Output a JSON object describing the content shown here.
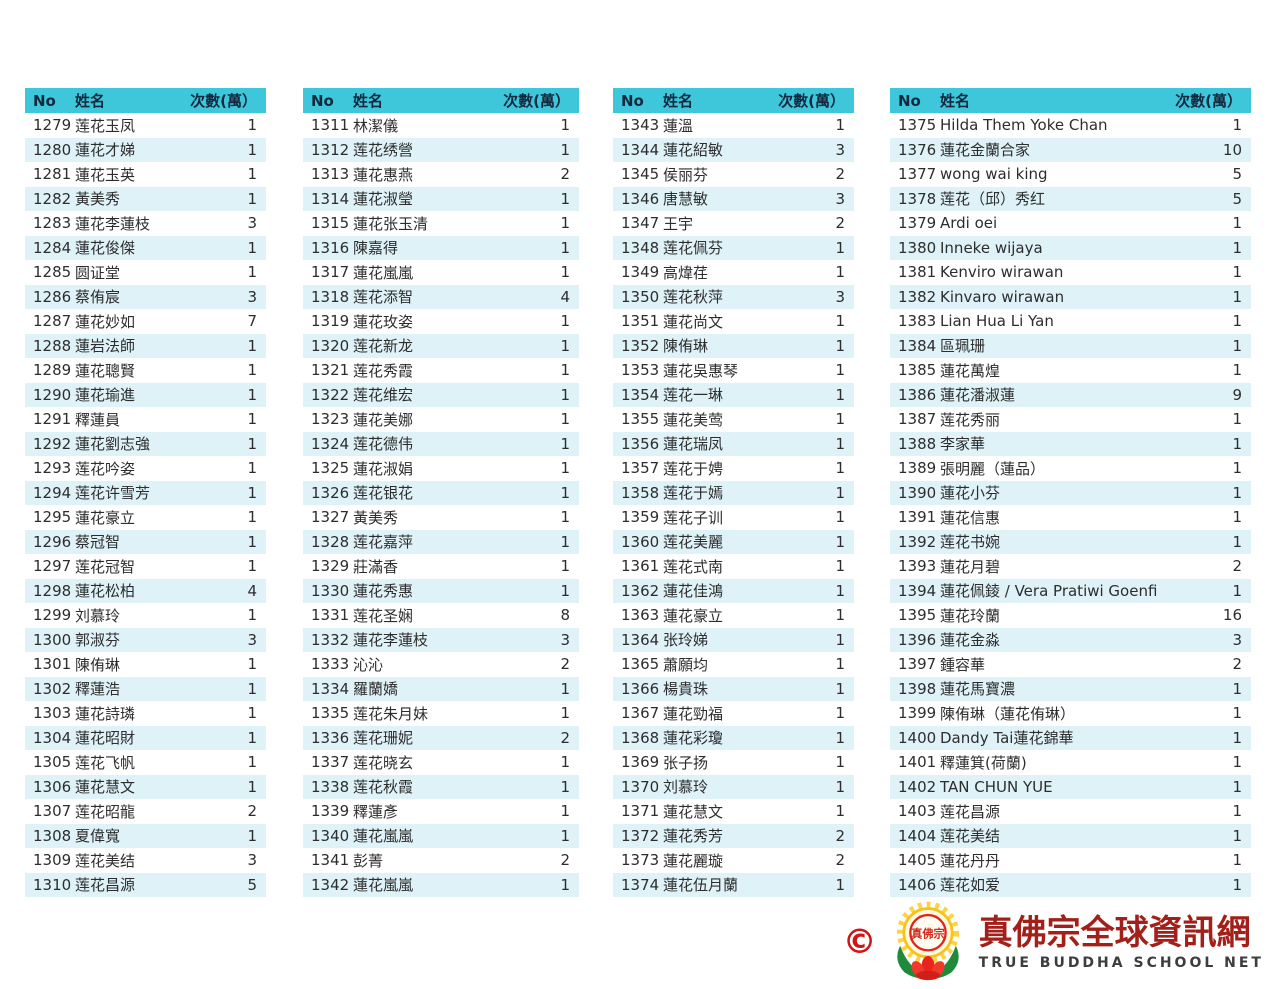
{
  "columns": {
    "no": "No",
    "name": "姓名",
    "count": "次數(萬）"
  },
  "tables": [
    {
      "rows": [
        {
          "no": "1279",
          "name": "莲花玉凤",
          "count": "1"
        },
        {
          "no": "1280",
          "name": "蓮花才娣",
          "count": "1"
        },
        {
          "no": "1281",
          "name": "蓮花玉英",
          "count": "1"
        },
        {
          "no": "1282",
          "name": "黃美秀",
          "count": "1"
        },
        {
          "no": "1283",
          "name": "蓮花李蓮枝",
          "count": "3"
        },
        {
          "no": "1284",
          "name": "蓮花俊傑",
          "count": "1"
        },
        {
          "no": "1285",
          "name": "圆证堂",
          "count": "1"
        },
        {
          "no": "1286",
          "name": "蔡侑宸",
          "count": "3"
        },
        {
          "no": "1287",
          "name": "蓮花妙如",
          "count": "7"
        },
        {
          "no": "1288",
          "name": "蓮岩法師",
          "count": "1"
        },
        {
          "no": "1289",
          "name": "蓮花聰賢",
          "count": "1"
        },
        {
          "no": "1290",
          "name": "蓮花瑜進",
          "count": "1"
        },
        {
          "no": "1291",
          "name": "釋蓮員",
          "count": "1"
        },
        {
          "no": "1292",
          "name": "蓮花劉志強",
          "count": "1"
        },
        {
          "no": "1293",
          "name": "莲花吟姿",
          "count": "1"
        },
        {
          "no": "1294",
          "name": "莲花许雪芳",
          "count": "1"
        },
        {
          "no": "1295",
          "name": "蓮花豪立",
          "count": "1"
        },
        {
          "no": "1296",
          "name": "蔡冠智",
          "count": "1"
        },
        {
          "no": "1297",
          "name": "莲花冠智",
          "count": "1"
        },
        {
          "no": "1298",
          "name": "蓮花松柏",
          "count": "4"
        },
        {
          "no": "1299",
          "name": "刘慕玲",
          "count": "1"
        },
        {
          "no": "1300",
          "name": "郭淑芬",
          "count": "3"
        },
        {
          "no": "1301",
          "name": "陳侑琳",
          "count": "1"
        },
        {
          "no": "1302",
          "name": "釋蓮浩",
          "count": "1"
        },
        {
          "no": "1303",
          "name": "蓮花詩璘",
          "count": "1"
        },
        {
          "no": "1304",
          "name": "蓮花昭財",
          "count": "1"
        },
        {
          "no": "1305",
          "name": "莲花飞帆",
          "count": "1"
        },
        {
          "no": "1306",
          "name": "蓮花慧文",
          "count": "1"
        },
        {
          "no": "1307",
          "name": "莲花昭龍",
          "count": "2"
        },
        {
          "no": "1308",
          "name": "夏偉寬",
          "count": "1"
        },
        {
          "no": "1309",
          "name": "莲花美结",
          "count": "3"
        },
        {
          "no": "1310",
          "name": "莲花昌源",
          "count": "5"
        }
      ]
    },
    {
      "rows": [
        {
          "no": "1311",
          "name": "林潔儀",
          "count": "1"
        },
        {
          "no": "1312",
          "name": "莲花绣營",
          "count": "1"
        },
        {
          "no": "1313",
          "name": "蓮花惠燕",
          "count": "2"
        },
        {
          "no": "1314",
          "name": "蓮花淑瑩",
          "count": "1"
        },
        {
          "no": "1315",
          "name": "蓮花张玉清",
          "count": "1"
        },
        {
          "no": "1316",
          "name": "陳嘉得",
          "count": "1"
        },
        {
          "no": "1317",
          "name": "蓮花嵐嵐",
          "count": "1"
        },
        {
          "no": "1318",
          "name": "莲花添智",
          "count": "4"
        },
        {
          "no": "1319",
          "name": "蓮花玫姿",
          "count": "1"
        },
        {
          "no": "1320",
          "name": "莲花新龙",
          "count": "1"
        },
        {
          "no": "1321",
          "name": "莲花秀霞",
          "count": "1"
        },
        {
          "no": "1322",
          "name": "莲花维宏",
          "count": "1"
        },
        {
          "no": "1323",
          "name": "蓮花美娜",
          "count": "1"
        },
        {
          "no": "1324",
          "name": "莲花德伟",
          "count": "1"
        },
        {
          "no": "1325",
          "name": "蓮花淑娟",
          "count": "1"
        },
        {
          "no": "1326",
          "name": "莲花银花",
          "count": "1"
        },
        {
          "no": "1327",
          "name": "黃美秀",
          "count": "1"
        },
        {
          "no": "1328",
          "name": "莲花嘉萍",
          "count": "1"
        },
        {
          "no": "1329",
          "name": "莊滿香",
          "count": "1"
        },
        {
          "no": "1330",
          "name": "蓮花秀惠",
          "count": "1"
        },
        {
          "no": "1331",
          "name": "莲花圣娴",
          "count": "8"
        },
        {
          "no": "1332",
          "name": "蓮花李蓮枝",
          "count": "3"
        },
        {
          "no": "1333",
          "name": "沁沁",
          "count": "2"
        },
        {
          "no": "1334",
          "name": "羅蘭嬌",
          "count": "1"
        },
        {
          "no": "1335",
          "name": "莲花朱月妹",
          "count": "1"
        },
        {
          "no": "1336",
          "name": "莲花珊妮",
          "count": "2"
        },
        {
          "no": "1337",
          "name": "莲花晓玄",
          "count": "1"
        },
        {
          "no": "1338",
          "name": "莲花秋霞",
          "count": "1"
        },
        {
          "no": "1339",
          "name": "釋蓮彥",
          "count": "1"
        },
        {
          "no": "1340",
          "name": "蓮花嵐嵐",
          "count": "1"
        },
        {
          "no": "1341",
          "name": "彭菁",
          "count": "2"
        },
        {
          "no": "1342",
          "name": "蓮花嵐嵐",
          "count": "1"
        }
      ]
    },
    {
      "rows": [
        {
          "no": "1343",
          "name": "蓮溫",
          "count": "1"
        },
        {
          "no": "1344",
          "name": "蓮花紹敏",
          "count": "3"
        },
        {
          "no": "1345",
          "name": "侯丽芬",
          "count": "2"
        },
        {
          "no": "1346",
          "name": "唐慧敏",
          "count": "3"
        },
        {
          "no": "1347",
          "name": "王宇",
          "count": "2"
        },
        {
          "no": "1348",
          "name": "莲花佩芬",
          "count": "1"
        },
        {
          "no": "1349",
          "name": "高煒荏",
          "count": "1"
        },
        {
          "no": "1350",
          "name": "莲花秋萍",
          "count": "3"
        },
        {
          "no": "1351",
          "name": "蓮花尚文",
          "count": "1"
        },
        {
          "no": "1352",
          "name": "陳侑琳",
          "count": "1"
        },
        {
          "no": "1353",
          "name": "蓮花吳惠琴",
          "count": "1"
        },
        {
          "no": "1354",
          "name": "莲花一琳",
          "count": "1"
        },
        {
          "no": "1355",
          "name": "蓮花美莺",
          "count": "1"
        },
        {
          "no": "1356",
          "name": "蓮花瑞凤",
          "count": "1"
        },
        {
          "no": "1357",
          "name": "莲花于娉",
          "count": "1"
        },
        {
          "no": "1358",
          "name": "莲花于嫣",
          "count": "1"
        },
        {
          "no": "1359",
          "name": "莲花子训",
          "count": "1"
        },
        {
          "no": "1360",
          "name": "莲花美麗",
          "count": "1"
        },
        {
          "no": "1361",
          "name": "莲花式南",
          "count": "1"
        },
        {
          "no": "1362",
          "name": "蓮花佳鴻",
          "count": "1"
        },
        {
          "no": "1363",
          "name": "蓮花豪立",
          "count": "1"
        },
        {
          "no": "1364",
          "name": "张玲娣",
          "count": "1"
        },
        {
          "no": "1365",
          "name": "蕭願均",
          "count": "1"
        },
        {
          "no": "1366",
          "name": "楊貴珠",
          "count": "1"
        },
        {
          "no": "1367",
          "name": "蓮花勁福",
          "count": "1"
        },
        {
          "no": "1368",
          "name": "蓮花彩瓊",
          "count": "1"
        },
        {
          "no": "1369",
          "name": "张子扬",
          "count": "1"
        },
        {
          "no": "1370",
          "name": "刘慕玲",
          "count": "1"
        },
        {
          "no": "1371",
          "name": "蓮花慧文",
          "count": "1"
        },
        {
          "no": "1372",
          "name": "蓮花秀芳",
          "count": "2"
        },
        {
          "no": "1373",
          "name": "蓮花麗璇",
          "count": "2"
        },
        {
          "no": "1374",
          "name": "蓮花伍月蘭",
          "count": "1"
        }
      ]
    },
    {
      "rows": [
        {
          "no": "1375",
          "name": "Hilda Them Yoke Chan",
          "count": "1"
        },
        {
          "no": "1376",
          "name": "蓮花金蘭合家",
          "count": "10"
        },
        {
          "no": "1377",
          "name": "wong wai king",
          "count": "5"
        },
        {
          "no": "1378",
          "name": "莲花（邱）秀红",
          "count": "5"
        },
        {
          "no": "1379",
          "name": "Ardi oei",
          "count": "1"
        },
        {
          "no": "1380",
          "name": "Inneke wijaya",
          "count": "1"
        },
        {
          "no": "1381",
          "name": "Kenviro wirawan",
          "count": "1"
        },
        {
          "no": "1382",
          "name": "Kinvaro wirawan",
          "count": "1"
        },
        {
          "no": "1383",
          "name": "Lian Hua Li Yan",
          "count": "1"
        },
        {
          "no": "1384",
          "name": "區珮珊",
          "count": "1"
        },
        {
          "no": "1385",
          "name": "蓮花萬煌",
          "count": "1"
        },
        {
          "no": "1386",
          "name": "蓮花潘淑蓮",
          "count": "9"
        },
        {
          "no": "1387",
          "name": "莲花秀丽",
          "count": "1"
        },
        {
          "no": "1388",
          "name": "李家華",
          "count": "1"
        },
        {
          "no": "1389",
          "name": "張明麗（蓮品）",
          "count": "1"
        },
        {
          "no": "1390",
          "name": "蓮花小芬",
          "count": "1"
        },
        {
          "no": "1391",
          "name": "蓮花信惠",
          "count": "1"
        },
        {
          "no": "1392",
          "name": "莲花书婉",
          "count": "1"
        },
        {
          "no": "1393",
          "name": "蓮花月碧",
          "count": "2"
        },
        {
          "no": "1394",
          "name": "蓮花佩錂 / Vera Pratiwi Goenfi",
          "count": "1"
        },
        {
          "no": "1395",
          "name": "蓮花玲蘭",
          "count": "16"
        },
        {
          "no": "1396",
          "name": "蓮花金淼",
          "count": "3"
        },
        {
          "no": "1397",
          "name": "鍾容華",
          "count": "2"
        },
        {
          "no": "1398",
          "name": "蓮花馬寶濃",
          "count": "1"
        },
        {
          "no": "1399",
          "name": "陳侑琳（蓮花侑琳）",
          "count": "1"
        },
        {
          "no": "1400",
          "name": "Dandy Tai蓮花錦華",
          "count": "1"
        },
        {
          "no": "1401",
          "name": "釋蓮箕(荷蘭)",
          "count": "1"
        },
        {
          "no": "1402",
          "name": "TAN CHUN YUE",
          "count": "1"
        },
        {
          "no": "1403",
          "name": "莲花昌源",
          "count": "1"
        },
        {
          "no": "1404",
          "name": "莲花美结",
          "count": "1"
        },
        {
          "no": "1405",
          "name": "蓮花丹丹",
          "count": "1"
        },
        {
          "no": "1406",
          "name": "莲花如爱",
          "count": "1"
        }
      ]
    }
  ],
  "footer": {
    "copyright": "©",
    "emblem_text": "真佛宗",
    "site_name_zh": "真佛宗全球資訊網",
    "site_name_en": "TRUE BUDDHA SCHOOL NET"
  },
  "colors": {
    "header_bg": "#3ec7db",
    "header_text": "#14293e",
    "row_alt_bg": "#def2f8",
    "row_text": "#2d2d2d",
    "brand_red": "#a3201a",
    "copyright_red": "#cf1616",
    "brand_gray": "#3d3d3d",
    "emblem_yellow": "#ffd23f",
    "emblem_green": "#1f8a3a",
    "emblem_red": "#e0251c"
  }
}
